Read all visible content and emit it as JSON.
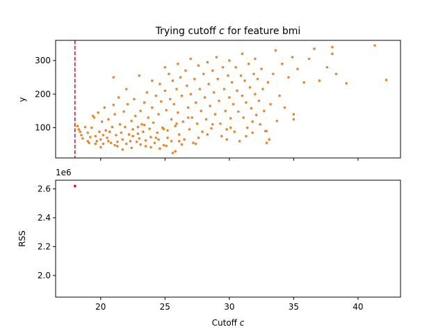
{
  "chart_data": [
    {
      "type": "scatter",
      "title_prefix": "Trying cutoff ",
      "title_var": "c",
      "title_suffix": " for feature bmi",
      "xlabel": "",
      "ylabel": "y",
      "xlim": [
        16.5,
        43.3
      ],
      "ylim": [
        10,
        360
      ],
      "yticks": [
        100,
        200,
        300
      ],
      "grid": false,
      "cutoff_line": {
        "x": 18.0,
        "color": "#ff0000",
        "style": "dashed"
      },
      "point_color": "#e8862f",
      "points": [
        [
          18.2,
          105
        ],
        [
          18.3,
          95
        ],
        [
          18.4,
          88
        ],
        [
          18.5,
          78
        ],
        [
          18.6,
          68
        ],
        [
          18.8,
          102
        ],
        [
          19.0,
          85
        ],
        [
          19.1,
          55
        ],
        [
          19.2,
          72
        ],
        [
          19.3,
          100
        ],
        [
          19.4,
          135
        ],
        [
          19.5,
          130
        ],
        [
          19.6,
          52
        ],
        [
          19.7,
          60
        ],
        [
          19.8,
          145
        ],
        [
          19.9,
          88
        ],
        [
          20.0,
          65
        ],
        [
          20.0,
          42
        ],
        [
          20.1,
          118
        ],
        [
          20.2,
          78
        ],
        [
          20.3,
          160
        ],
        [
          20.4,
          92
        ],
        [
          20.5,
          70
        ],
        [
          20.6,
          125
        ],
        [
          20.7,
          88
        ],
        [
          20.8,
          55
        ],
        [
          20.9,
          102
        ],
        [
          21.0,
          250
        ],
        [
          21.0,
          168
        ],
        [
          21.1,
          140
        ],
        [
          21.2,
          78
        ],
        [
          21.3,
          58
        ],
        [
          21.3,
          45
        ],
        [
          21.4,
          190
        ],
        [
          21.5,
          110
        ],
        [
          21.6,
          85
        ],
        [
          21.7,
          65
        ],
        [
          21.8,
          148
        ],
        [
          21.9,
          102
        ],
        [
          22.0,
          215
        ],
        [
          22.0,
          52
        ],
        [
          22.1,
          170
        ],
        [
          22.2,
          80
        ],
        [
          22.3,
          60
        ],
        [
          22.4,
          120
        ],
        [
          22.5,
          95
        ],
        [
          22.5,
          75
        ],
        [
          22.6,
          185
        ],
        [
          22.7,
          135
        ],
        [
          22.8,
          58
        ],
        [
          22.9,
          102
        ],
        [
          23.0,
          255
        ],
        [
          23.0,
          68
        ],
        [
          23.1,
          150
        ],
        [
          23.2,
          110
        ],
        [
          23.3,
          88
        ],
        [
          23.4,
          175
        ],
        [
          23.5,
          62
        ],
        [
          23.5,
          45
        ],
        [
          23.6,
          205
        ],
        [
          23.7,
          130
        ],
        [
          23.8,
          97
        ],
        [
          23.9,
          72
        ],
        [
          24.0,
          240
        ],
        [
          24.0,
          160
        ],
        [
          24.1,
          115
        ],
        [
          24.2,
          55
        ],
        [
          24.3,
          195
        ],
        [
          24.4,
          85
        ],
        [
          24.5,
          140
        ],
        [
          24.5,
          65
        ],
        [
          24.6,
          230
        ],
        [
          24.7,
          178
        ],
        [
          24.8,
          100
        ],
        [
          24.9,
          48
        ],
        [
          25.0,
          280
        ],
        [
          25.0,
          210
        ],
        [
          25.1,
          152
        ],
        [
          25.2,
          92
        ],
        [
          25.2,
          70
        ],
        [
          25.3,
          260
        ],
        [
          25.4,
          185
        ],
        [
          25.5,
          125
        ],
        [
          25.5,
          60
        ],
        [
          25.6,
          240
        ],
        [
          25.7,
          170
        ],
        [
          25.8,
          105
        ],
        [
          25.8,
          30
        ],
        [
          25.9,
          215
        ],
        [
          26.0,
          290
        ],
        [
          26.0,
          145
        ],
        [
          26.1,
          80
        ],
        [
          26.2,
          250
        ],
        [
          26.3,
          195
        ],
        [
          26.4,
          118
        ],
        [
          26.5,
          65
        ],
        [
          26.6,
          270
        ],
        [
          26.7,
          225
        ],
        [
          26.8,
          160
        ],
        [
          26.9,
          95
        ],
        [
          27.0,
          305
        ],
        [
          27.0,
          200
        ],
        [
          27.1,
          130
        ],
        [
          27.2,
          55
        ],
        [
          27.3,
          245
        ],
        [
          27.4,
          175
        ],
        [
          27.5,
          112
        ],
        [
          27.6,
          285
        ],
        [
          27.7,
          215
        ],
        [
          27.8,
          150
        ],
        [
          27.9,
          88
        ],
        [
          28.0,
          260
        ],
        [
          28.1,
          190
        ],
        [
          28.2,
          125
        ],
        [
          28.3,
          295
        ],
        [
          28.4,
          230
        ],
        [
          28.5,
          165
        ],
        [
          28.6,
          98
        ],
        [
          28.7,
          270
        ],
        [
          28.8,
          205
        ],
        [
          28.9,
          140
        ],
        [
          29.0,
          310
        ],
        [
          29.1,
          245
        ],
        [
          29.2,
          180
        ],
        [
          29.3,
          112
        ],
        [
          29.4,
          75
        ],
        [
          29.5,
          280
        ],
        [
          29.6,
          215
        ],
        [
          29.7,
          150
        ],
        [
          29.8,
          95
        ],
        [
          29.9,
          255
        ],
        [
          30.0,
          300
        ],
        [
          30.0,
          190
        ],
        [
          30.1,
          128
        ],
        [
          30.2,
          235
        ],
        [
          30.3,
          170
        ],
        [
          30.4,
          88
        ],
        [
          30.5,
          280
        ],
        [
          30.6,
          210
        ],
        [
          30.7,
          148
        ],
        [
          30.8,
          60
        ],
        [
          30.9,
          255
        ],
        [
          31.0,
          320
        ],
        [
          31.0,
          195
        ],
        [
          31.1,
          130
        ],
        [
          31.2,
          240
        ],
        [
          31.3,
          175
        ],
        [
          31.4,
          100
        ],
        [
          31.5,
          290
        ],
        [
          31.6,
          220
        ],
        [
          31.7,
          158
        ],
        [
          31.8,
          85
        ],
        [
          31.9,
          260
        ],
        [
          32.0,
          305
        ],
        [
          32.0,
          200
        ],
        [
          32.1,
          138
        ],
        [
          32.2,
          245
        ],
        [
          32.3,
          180
        ],
        [
          32.4,
          110
        ],
        [
          32.5,
          275
        ],
        [
          32.6,
          215
        ],
        [
          32.7,
          150
        ],
        [
          32.8,
          90
        ],
        [
          32.9,
          55
        ],
        [
          33.0,
          235
        ],
        [
          33.2,
          170
        ],
        [
          33.4,
          260
        ],
        [
          33.6,
          330
        ],
        [
          33.7,
          120
        ],
        [
          33.9,
          195
        ],
        [
          34.1,
          290
        ],
        [
          34.3,
          160
        ],
        [
          34.6,
          250
        ],
        [
          34.9,
          310
        ],
        [
          35.0,
          140
        ],
        [
          35.0,
          125
        ],
        [
          35.3,
          275
        ],
        [
          35.8,
          235
        ],
        [
          36.2,
          305
        ],
        [
          36.6,
          335
        ],
        [
          37.0,
          240
        ],
        [
          37.6,
          280
        ],
        [
          38.0,
          340
        ],
        [
          38.0,
          320
        ],
        [
          38.3,
          260
        ],
        [
          39.1,
          232
        ],
        [
          41.3,
          345
        ],
        [
          42.2,
          242
        ],
        [
          20.6,
          60
        ],
        [
          21.1,
          48
        ],
        [
          21.7,
          35
        ],
        [
          22.4,
          40
        ],
        [
          23.1,
          50
        ],
        [
          23.9,
          42
        ],
        [
          24.6,
          38
        ],
        [
          25.1,
          46
        ],
        [
          25.6,
          25
        ],
        [
          26.3,
          50
        ],
        [
          27.4,
          52
        ],
        [
          19.0,
          60
        ],
        [
          19.6,
          75
        ],
        [
          20.2,
          52
        ],
        [
          22.9,
          82
        ],
        [
          24.3,
          70
        ],
        [
          26.1,
          60
        ],
        [
          27.6,
          70
        ],
        [
          28.3,
          80
        ],
        [
          29.8,
          65
        ],
        [
          31.3,
          75
        ],
        [
          32.9,
          90
        ],
        [
          33.1,
          65
        ],
        [
          23.4,
          108
        ],
        [
          24.9,
          96
        ],
        [
          25.9,
          112
        ],
        [
          26.8,
          130
        ],
        [
          28.7,
          110
        ],
        [
          30.1,
          100
        ],
        [
          31.8,
          118
        ]
      ]
    },
    {
      "type": "scatter",
      "xlabel_prefix": "Cutoff ",
      "xlabel_var": "c",
      "ylabel": "RSS",
      "offset_text": "1e6",
      "xlim": [
        16.5,
        43.3
      ],
      "ylim": [
        1.85,
        2.66
      ],
      "xticks": [
        20,
        25,
        30,
        35,
        40
      ],
      "yticks": [
        2.0,
        2.2,
        2.4,
        2.6
      ],
      "ytick_labels": [
        "2.0",
        "2.2",
        "2.4",
        "2.6"
      ],
      "grid": false,
      "point_color": "#ff0000",
      "points": [
        [
          18.0,
          2.62
        ]
      ]
    }
  ]
}
